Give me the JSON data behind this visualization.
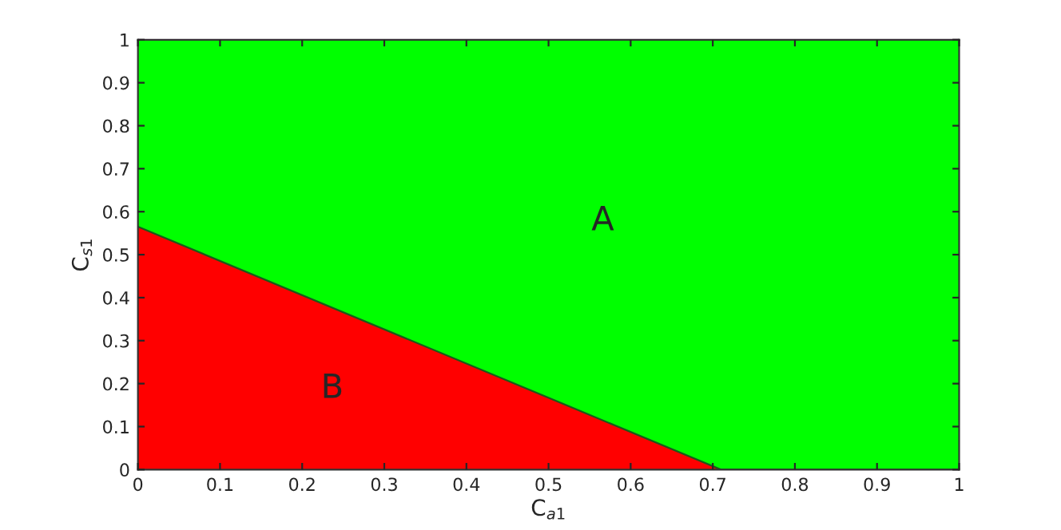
{
  "chart_data": {
    "type": "area",
    "stacked": true,
    "xlabel": "C$_{a1}$",
    "ylabel": "C$_{s1}$",
    "x": [
      0,
      0.71,
      1
    ],
    "series": [
      {
        "color": "#ff0000",
        "values": [
          0.565,
          0,
          0
        ]
      },
      {
        "color": "#00ff00",
        "values": [
          0.435,
          1,
          1
        ]
      }
    ],
    "annotations": [
      "A",
      "B"
    ],
    "xlim": [
      0,
      1
    ],
    "ylim": [
      0,
      1
    ],
    "xticks": [
      0,
      0.1,
      0.2,
      0.3,
      0.4,
      0.5,
      0.6,
      0.7,
      0.8,
      0.9,
      1
    ],
    "yticks": [
      0,
      0.1,
      0.2,
      0.3,
      0.4,
      0.5,
      0.6,
      0.7,
      0.8,
      0.9,
      1
    ],
    "grid": false,
    "legend": false
  }
}
